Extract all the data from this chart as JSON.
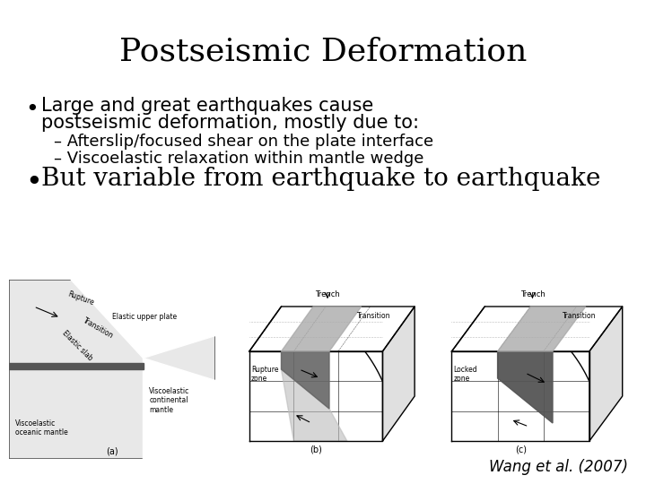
{
  "title": "Postseismic Deformation",
  "title_fontsize": 26,
  "bullet1_line1": "Large and great earthquakes cause",
  "bullet1_line2": "postseismic deformation, mostly due to:",
  "sub1": "– Afterslip/focused shear on the plate interface",
  "sub2": "– Viscoelastic relaxation within mantle wedge",
  "bullet2": "But variable from earthquake to earthquake",
  "citation": "Wang et al. (2007)",
  "bg_color": "#ffffff",
  "text_color": "#000000",
  "bullet1_fontsize": 15,
  "sub_fontsize": 13,
  "bullet2_fontsize": 20,
  "citation_fontsize": 12
}
